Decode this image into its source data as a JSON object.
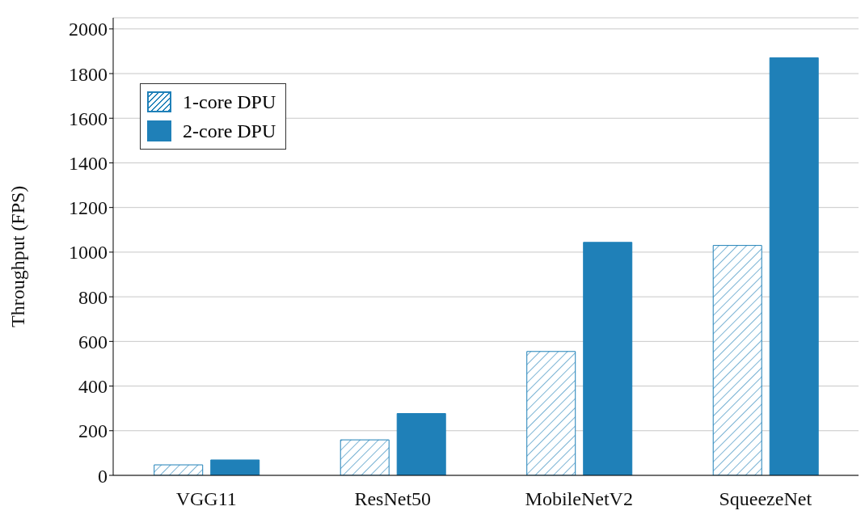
{
  "chart_data": {
    "type": "bar",
    "ylabel": "Throughput (FPS)",
    "categories": [
      "VGG11",
      "ResNet50",
      "MobileNetV2",
      "SqueezeNet"
    ],
    "series": [
      {
        "name": "1-core DPU",
        "color": "#1f80b8",
        "values": [
          47,
          159,
          555,
          1030
        ]
      },
      {
        "name": "2-core DPU",
        "color": "#1f80b8",
        "values": [
          69,
          277,
          1044,
          1871
        ]
      }
    ],
    "ylim": [
      0,
      2050
    ],
    "yticks": [
      0,
      200,
      400,
      600,
      800,
      1000,
      1200,
      1400,
      1600,
      1800,
      2000
    ],
    "grid": "y",
    "legend": "top left"
  }
}
